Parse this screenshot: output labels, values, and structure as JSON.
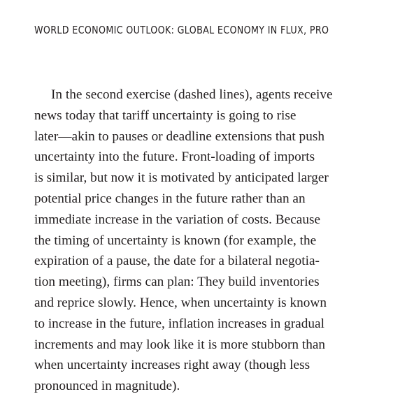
{
  "header": {
    "running_title": "WORLD ECONOMIC OUTLOOK: GLOBAL ECONOMY IN FLUX, PRO"
  },
  "paragraph": {
    "lines": [
      "In the second exercise (dashed lines), agents receive",
      "news today that tariff uncertainty is going to rise",
      "later—akin to pauses or deadline extensions that push",
      "uncertainty into the future. Front-loading of imports",
      "is similar, but now it is motivated by anticipated larger",
      "potential price changes in the future rather than an",
      "immediate increase in the variation of costs. Because",
      "the timing of uncertainty is known (for example, the",
      "expiration of a pause, the date for a bilateral negotia-",
      "tion meeting), firms can plan: They build inventories",
      "and reprice slowly. Hence, when uncertainty is known",
      "to increase in the future, inflation increases in gradual",
      "increments and may look like it is more stubborn than",
      "when uncertainty increases right away (though less",
      "pronounced in magnitude)."
    ]
  }
}
